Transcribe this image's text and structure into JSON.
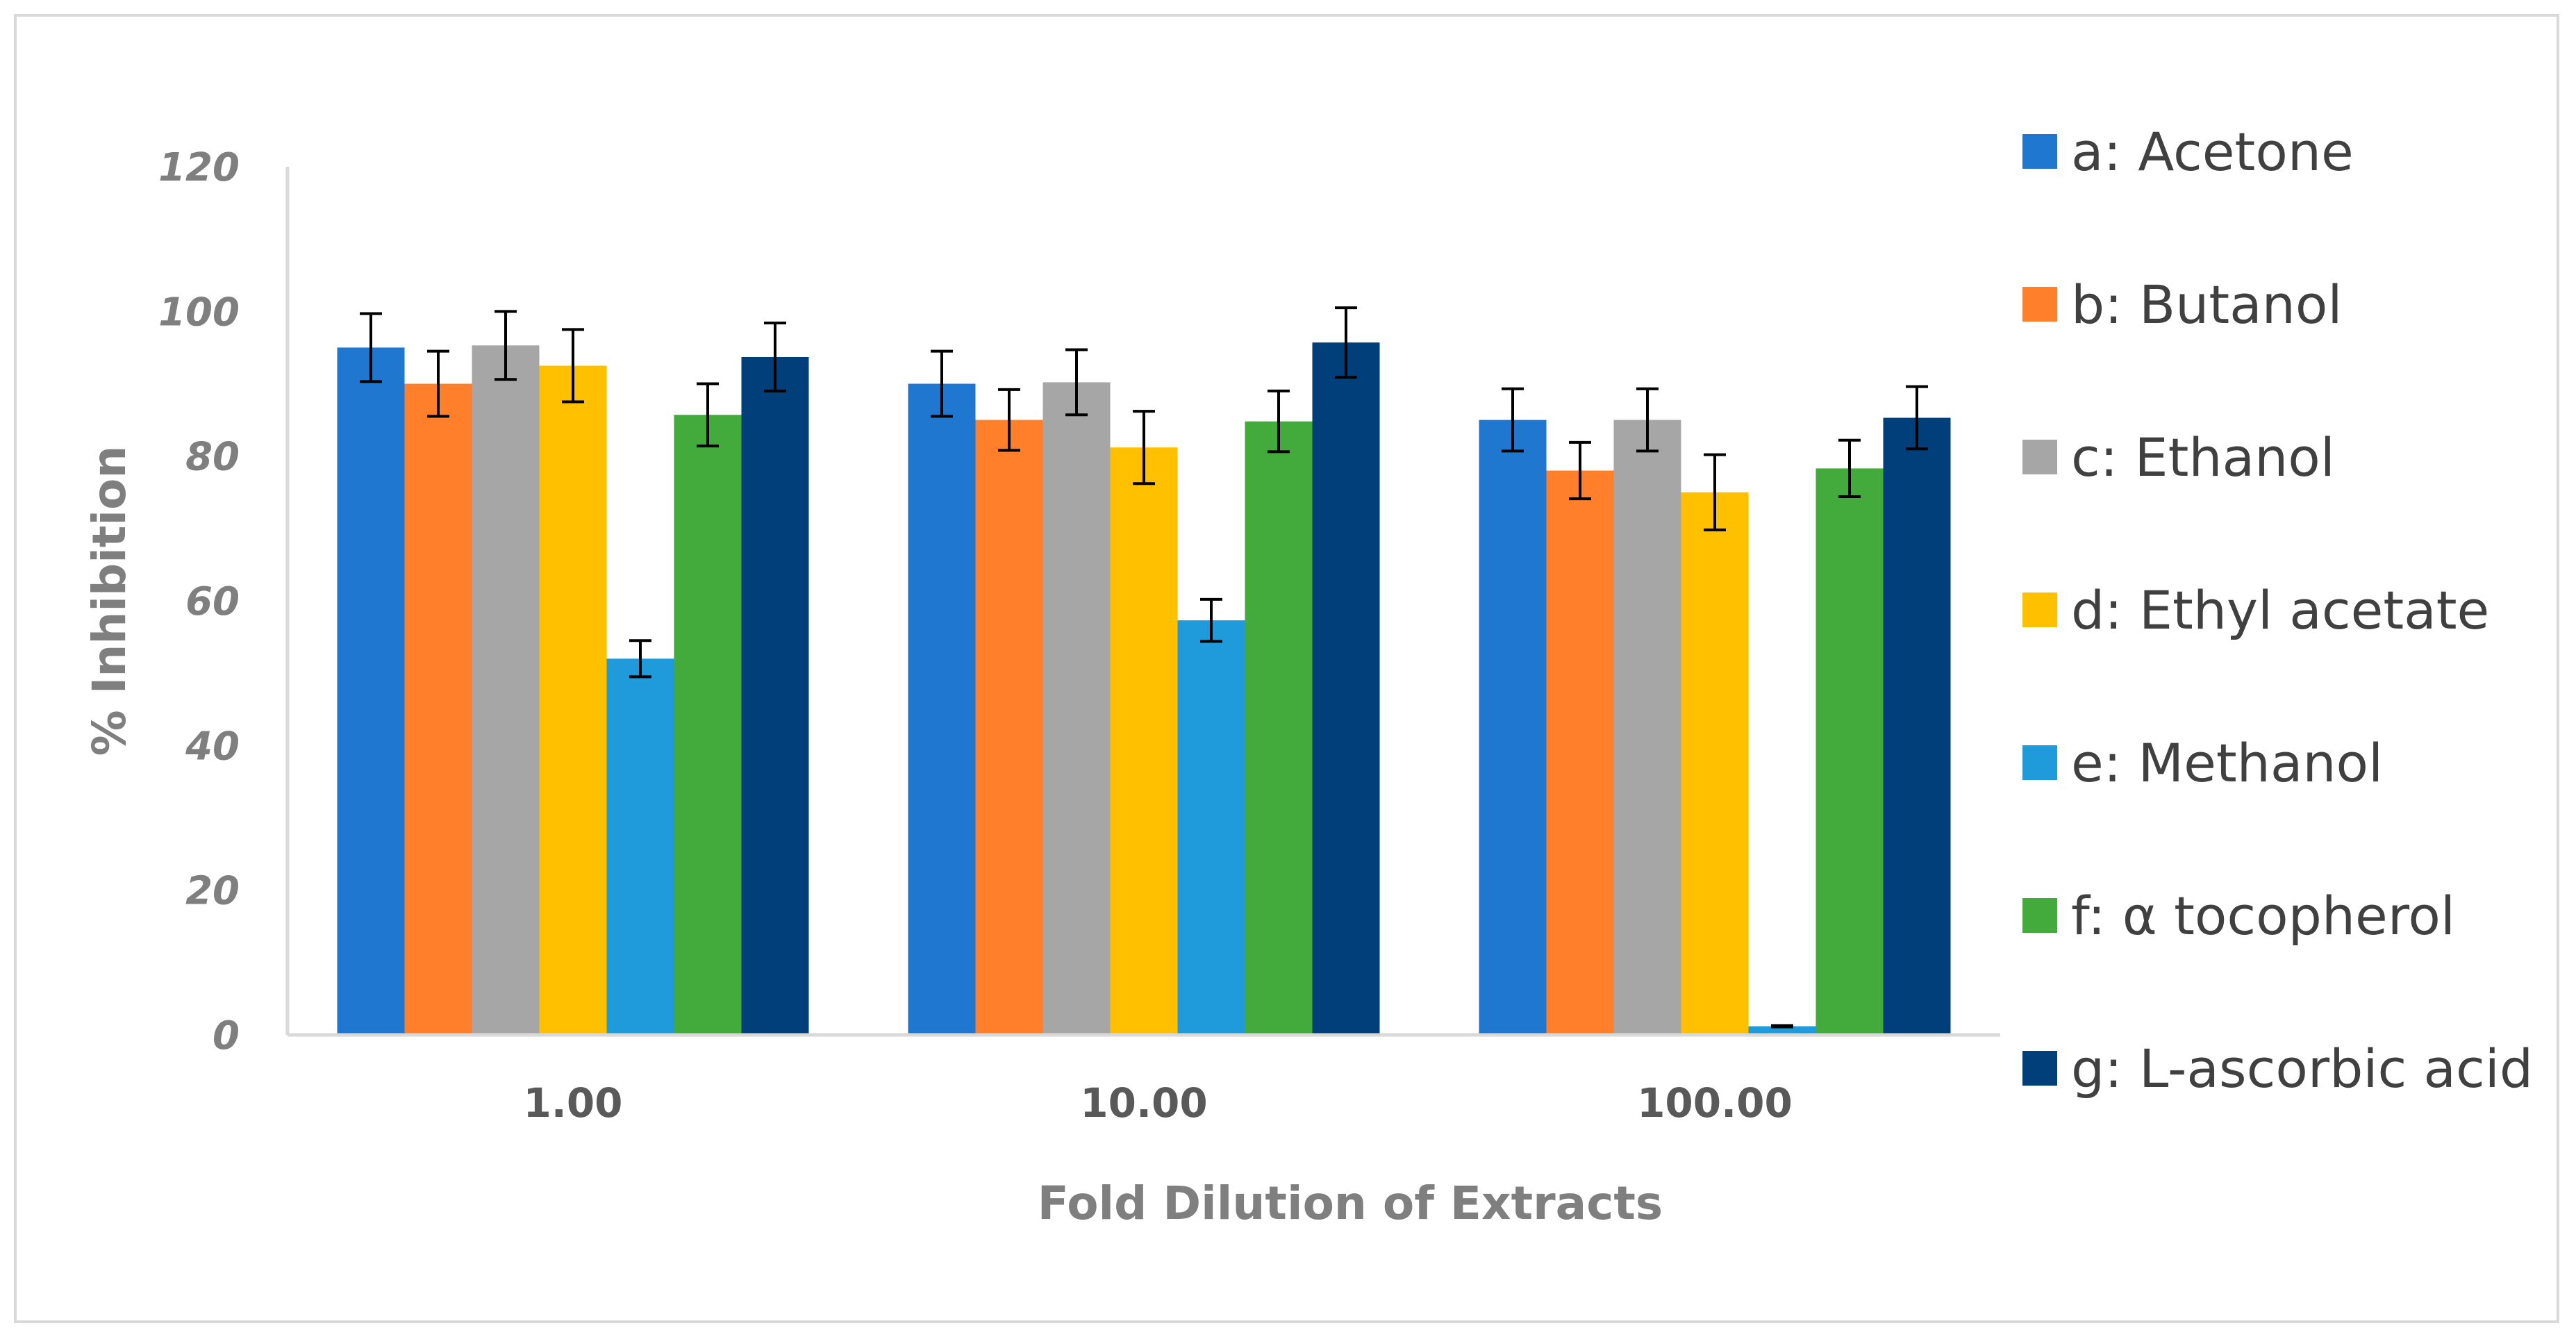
{
  "chart_data": {
    "type": "bar",
    "title": "",
    "xlabel": "Fold Dilution of Extracts",
    "ylabel": "% Inhibition",
    "ylim": [
      0,
      120
    ],
    "yticks": [
      0,
      20,
      40,
      60,
      80,
      100,
      120
    ],
    "ytick_labels": [
      "0",
      "20",
      "40",
      "60",
      "80",
      "100",
      "120"
    ],
    "categories": [
      "1.00",
      "10.00",
      "100.00"
    ],
    "grid": false,
    "legend_position": "right",
    "series": [
      {
        "name": "a: Acetone",
        "color": "#1F77D0",
        "values": [
          95,
          90,
          85
        ],
        "errors": [
          4.7,
          4.5,
          4.3
        ]
      },
      {
        "name": "b: Butanol",
        "color": "#FF7F2A",
        "values": [
          90,
          85,
          78
        ],
        "errors": [
          4.5,
          4.2,
          3.9
        ]
      },
      {
        "name": "c: Ethanol",
        "color": "#A6A6A6",
        "values": [
          95.3,
          90.2,
          85
        ],
        "errors": [
          4.7,
          4.5,
          4.3
        ]
      },
      {
        "name": "d: Ethyl acetate",
        "color": "#FFC000",
        "values": [
          92.5,
          81.2,
          75
        ],
        "errors": [
          5,
          5,
          5.2
        ]
      },
      {
        "name": "e: Methanol",
        "color": "#1F9BDB",
        "values": [
          52,
          57.3,
          1.2
        ],
        "errors": [
          2.5,
          2.9,
          0.1
        ]
      },
      {
        "name": "f: α tocopherol",
        "color": "#43AB3C",
        "values": [
          85.7,
          84.8,
          78.3
        ],
        "errors": [
          4.3,
          4.2,
          3.9
        ]
      },
      {
        "name": "g: L-ascorbic acid",
        "color": "#003F7A",
        "values": [
          93.7,
          95.7,
          85.3
        ],
        "errors": [
          4.7,
          4.8,
          4.3
        ]
      }
    ]
  }
}
